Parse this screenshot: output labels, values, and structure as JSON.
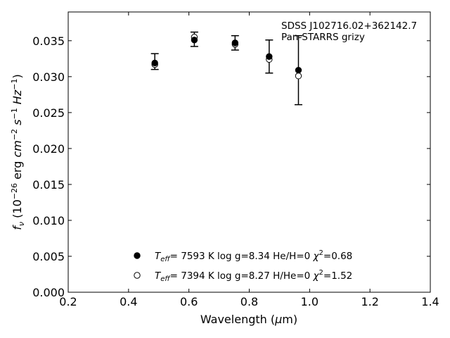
{
  "chart_data": {
    "type": "scatter",
    "title": "",
    "xlabel": "Wavelength (μm)",
    "ylabel": "f_ν (10^-26 erg cm^-2 s^-1 Hz^-1)",
    "xlim": [
      0.2,
      1.4
    ],
    "ylim": [
      0.0,
      0.039
    ],
    "x_ticks": [
      0.2,
      0.4,
      0.6,
      0.8,
      1.0,
      1.2,
      1.4
    ],
    "x_tick_labels": [
      "0.2",
      "0.4",
      "0.6",
      "0.8",
      "1.0",
      "1.2",
      "1.4"
    ],
    "y_ticks": [
      0.0,
      0.005,
      0.01,
      0.015,
      0.02,
      0.025,
      0.03,
      0.035
    ],
    "y_tick_labels": [
      "0.000",
      "0.005",
      "0.010",
      "0.015",
      "0.020",
      "0.025",
      "0.030",
      "0.035"
    ],
    "grid": false,
    "annotations": [
      "SDSS J102716.02+362142.7",
      "Pan-STARRS grizy"
    ],
    "observed": {
      "x": [
        0.487,
        0.618,
        0.753,
        0.866,
        0.963
      ],
      "y": [
        0.0321,
        0.0352,
        0.0347,
        0.0328,
        0.0309
      ],
      "yerr": [
        0.0011,
        0.001,
        0.001,
        0.0023,
        0.0048
      ]
    },
    "series": [
      {
        "marker": "filled-circle",
        "x": [
          0.487,
          0.618,
          0.753,
          0.866,
          0.963
        ],
        "y": [
          0.0319,
          0.0351,
          0.0347,
          0.0328,
          0.0309
        ]
      },
      {
        "marker": "open-circle",
        "x": [
          0.487,
          0.618,
          0.753,
          0.866,
          0.963
        ],
        "y": [
          0.0317,
          0.0355,
          0.0345,
          0.0324,
          0.0301
        ]
      }
    ],
    "legend_position": "lower-center",
    "legend": [
      {
        "marker": "filled-circle",
        "teff": "7593 K",
        "logg": "log g=8.34",
        "comp": "He/H=0",
        "chi2": "=0.68"
      },
      {
        "marker": "open-circle",
        "teff": "7394 K",
        "logg": "log g=8.27",
        "comp": "H/He=0",
        "chi2": "=1.52"
      }
    ]
  }
}
